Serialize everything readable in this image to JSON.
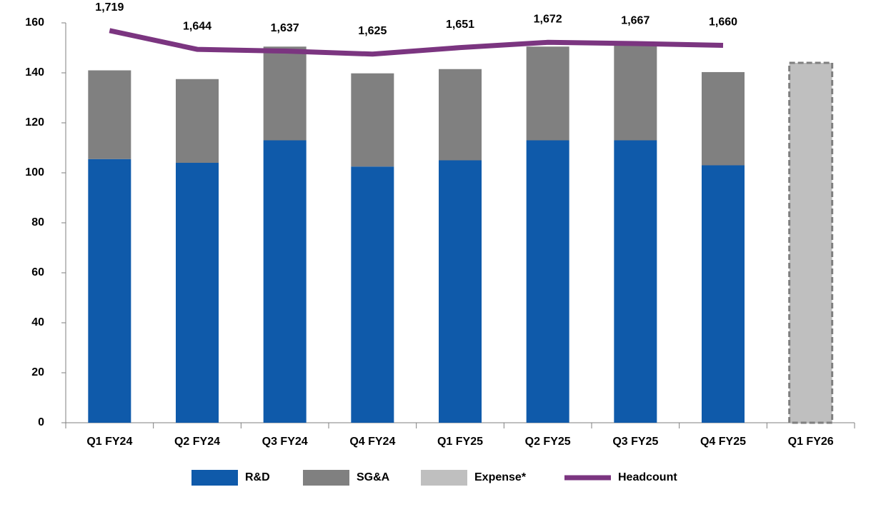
{
  "chart_data": {
    "type": "bar",
    "categories": [
      "Q1 FY24",
      "Q2 FY24",
      "Q3 FY24",
      "Q4 FY24",
      "Q1 FY25",
      "Q2 FY25",
      "Q3 FY25",
      "Q4 FY25",
      "Q1 FY26"
    ],
    "series": [
      {
        "name": "R&D",
        "color": "#0f5aaa",
        "values": [
          105.5,
          104,
          113,
          102.5,
          105,
          113,
          113,
          103,
          null
        ]
      },
      {
        "name": "SG&A",
        "color": "#808080",
        "values": [
          35.5,
          33.5,
          37.5,
          37.3,
          36.5,
          37.5,
          39,
          37.3,
          null
        ]
      },
      {
        "name": "Expense*",
        "color": "#bfbfbf",
        "values": [
          null,
          null,
          null,
          null,
          null,
          null,
          null,
          null,
          144
        ]
      },
      {
        "name": "Headcount",
        "type": "line",
        "axis": "y2",
        "color": "#7b3580",
        "values": [
          1719,
          1644,
          1637,
          1625,
          1651,
          1672,
          1667,
          1660,
          null
        ],
        "value_labels": [
          "1,719",
          "1,644",
          "1,637",
          "1,625",
          "1,651",
          "1,672",
          "1,667",
          "1,660",
          null
        ]
      }
    ],
    "ylim": [
      0,
      160
    ],
    "yticks": [
      0,
      20,
      40,
      60,
      80,
      100,
      120,
      140,
      160
    ],
    "y2lim": [
      150,
      1750
    ],
    "grid": false,
    "legend": "bottom"
  }
}
